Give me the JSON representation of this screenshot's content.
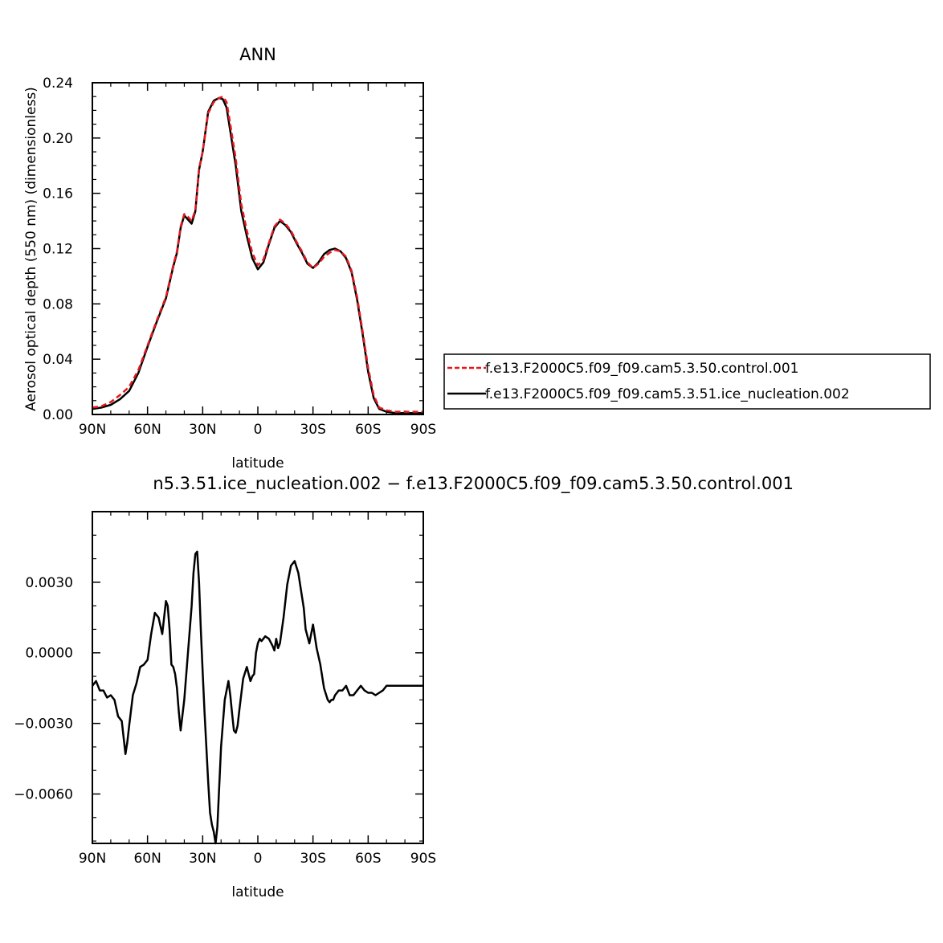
{
  "chart_data": [
    {
      "type": "line",
      "title": "ANN",
      "xlabel": "latitude",
      "ylabel": "Aerosol optical depth (550 nm) (dimensionless)",
      "xlim": [
        90,
        -90
      ],
      "ylim": [
        0,
        0.24
      ],
      "x_ticks": [
        90,
        60,
        30,
        0,
        -30,
        -60,
        -90
      ],
      "x_tick_labels": [
        "90N",
        "60N",
        "30N",
        "0",
        "30S",
        "60S",
        "90S"
      ],
      "y_ticks": [
        0,
        0.04,
        0.08,
        0.12,
        0.16,
        0.2,
        0.24
      ],
      "y_tick_labels": [
        "0.00",
        "0.04",
        "0.08",
        "0.12",
        "0.16",
        "0.20",
        "0.24"
      ],
      "legend": "right",
      "grid": false,
      "series": [
        {
          "name": "f.e13.F2000C5.f09_f09.cam5.3.50.control.001",
          "color": "#e8171d",
          "dash": "dashed",
          "x": [
            90,
            85,
            80,
            75,
            70,
            65,
            60,
            55,
            50,
            46,
            44,
            42,
            40,
            38,
            36,
            34,
            32,
            30,
            27,
            24,
            21,
            19,
            17,
            15,
            12,
            9,
            6,
            3,
            0,
            -3,
            -6,
            -9,
            -12,
            -15,
            -18,
            -21,
            -24,
            -27,
            -30,
            -33,
            -36,
            -39,
            -42,
            -45,
            -48,
            -51,
            -54,
            -57,
            -60,
            -63,
            -66,
            -70,
            -75,
            -80,
            -85,
            -90
          ],
          "y": [
            0.005,
            0.006,
            0.009,
            0.014,
            0.02,
            0.032,
            0.05,
            0.068,
            0.085,
            0.108,
            0.118,
            0.136,
            0.145,
            0.143,
            0.14,
            0.148,
            0.178,
            0.19,
            0.218,
            0.226,
            0.229,
            0.23,
            0.226,
            0.21,
            0.185,
            0.152,
            0.133,
            0.117,
            0.108,
            0.112,
            0.124,
            0.136,
            0.141,
            0.138,
            0.133,
            0.125,
            0.118,
            0.11,
            0.106,
            0.109,
            0.114,
            0.117,
            0.119,
            0.118,
            0.114,
            0.104,
            0.085,
            0.06,
            0.034,
            0.014,
            0.005,
            0.003,
            0.002,
            0.002,
            0.002,
            0.002
          ]
        },
        {
          "name": "f.e13.F2000C5.f09_f09.cam5.3.51.ice_nucleation.002",
          "color": "#000000",
          "dash": "solid",
          "x": [
            90,
            85,
            80,
            75,
            70,
            65,
            60,
            55,
            50,
            46,
            44,
            42,
            40,
            38,
            36,
            34,
            32,
            30,
            27,
            24,
            21,
            19,
            17,
            15,
            12,
            9,
            6,
            3,
            0,
            -3,
            -6,
            -9,
            -12,
            -15,
            -18,
            -21,
            -24,
            -27,
            -30,
            -33,
            -36,
            -39,
            -42,
            -45,
            -48,
            -51,
            -54,
            -57,
            -60,
            -63,
            -66,
            -70,
            -75,
            -80,
            -85,
            -90
          ],
          "y": [
            0.004,
            0.005,
            0.007,
            0.011,
            0.017,
            0.03,
            0.049,
            0.067,
            0.084,
            0.107,
            0.117,
            0.135,
            0.144,
            0.141,
            0.138,
            0.147,
            0.177,
            0.19,
            0.219,
            0.227,
            0.229,
            0.228,
            0.222,
            0.205,
            0.18,
            0.147,
            0.129,
            0.113,
            0.105,
            0.11,
            0.123,
            0.135,
            0.14,
            0.137,
            0.132,
            0.124,
            0.117,
            0.109,
            0.106,
            0.11,
            0.116,
            0.119,
            0.12,
            0.118,
            0.113,
            0.103,
            0.083,
            0.058,
            0.031,
            0.012,
            0.004,
            0.002,
            0.001,
            0.001,
            0.001,
            0.001
          ]
        }
      ]
    },
    {
      "type": "line",
      "title": "n5.3.51.ice_nucleation.002  −  f.e13.F2000C5.f09_f09.cam5.3.50.control.001",
      "xlabel": "latitude",
      "ylabel": "",
      "xlim": [
        90,
        -90
      ],
      "ylim": [
        -0.0081,
        0.006
      ],
      "x_ticks": [
        90,
        60,
        30,
        0,
        -30,
        -60,
        -90
      ],
      "x_tick_labels": [
        "90N",
        "60N",
        "30N",
        "0",
        "30S",
        "60S",
        "90S"
      ],
      "y_ticks": [
        -0.006,
        -0.003,
        0.0,
        0.003
      ],
      "y_tick_labels": [
        "−0.0060",
        "−0.0030",
        "0.0000",
        "0.0030"
      ],
      "grid": false,
      "series": [
        {
          "color": "#000000",
          "x": [
            90,
            88,
            86,
            84,
            82,
            80,
            78,
            76,
            74,
            72,
            71,
            70,
            68,
            66,
            64,
            62,
            60,
            58,
            56,
            54,
            52,
            50,
            49,
            48,
            47,
            46,
            45,
            44,
            43,
            42,
            40,
            38,
            36,
            35,
            34,
            33,
            32,
            31,
            30,
            29,
            28,
            27,
            26,
            25,
            24,
            23,
            22,
            20,
            18,
            16,
            15,
            14,
            13,
            12,
            11,
            10,
            8,
            6,
            4,
            3,
            2,
            1,
            0,
            -1,
            -2,
            -4,
            -6,
            -8,
            -9,
            -10,
            -11,
            -12,
            -14,
            -16,
            -18,
            -20,
            -22,
            -24,
            -25,
            -26,
            -28,
            -30,
            -32,
            -34,
            -36,
            -38,
            -39,
            -40,
            -41,
            -42,
            -44,
            -46,
            -48,
            -50,
            -52,
            -54,
            -56,
            -58,
            -60,
            -62,
            -64,
            -66,
            -68,
            -70,
            -72,
            -74,
            -76,
            -78,
            -80,
            -82,
            -84,
            -86,
            -88,
            -90
          ],
          "y": [
            -0.0014,
            -0.0012,
            -0.0016,
            -0.0016,
            -0.0019,
            -0.0018,
            -0.002,
            -0.0027,
            -0.0029,
            -0.0043,
            -0.0038,
            -0.0031,
            -0.0018,
            -0.0013,
            -0.0006,
            -0.0005,
            -0.0003,
            0.0008,
            0.0017,
            0.0015,
            0.0008,
            0.0022,
            0.002,
            0.001,
            -0.0005,
            -0.0006,
            -0.0009,
            -0.0015,
            -0.0025,
            -0.0033,
            -0.002,
            0.0,
            0.002,
            0.0034,
            0.0042,
            0.0043,
            0.003,
            0.001,
            -0.0008,
            -0.0025,
            -0.004,
            -0.0055,
            -0.0068,
            -0.0073,
            -0.0076,
            -0.0081,
            -0.0074,
            -0.004,
            -0.002,
            -0.0012,
            -0.0018,
            -0.0026,
            -0.0033,
            -0.0034,
            -0.0031,
            -0.0024,
            -0.0011,
            -0.0006,
            -0.0012,
            -0.001,
            -0.0009,
            0.0,
            0.0004,
            0.0006,
            0.0005,
            0.0007,
            0.0006,
            0.0003,
            0.0001,
            0.0006,
            0.0002,
            0.0004,
            0.0015,
            0.0029,
            0.0037,
            0.0039,
            0.0034,
            0.0024,
            0.0019,
            0.001,
            0.0004,
            0.0012,
            0.0002,
            -0.0005,
            -0.0015,
            -0.002,
            -0.0021,
            -0.002,
            -0.002,
            -0.0018,
            -0.0016,
            -0.0016,
            -0.0014,
            -0.0018,
            -0.0018,
            -0.0016,
            -0.0014,
            -0.0016,
            -0.0017,
            -0.0017,
            -0.0018,
            -0.0017,
            -0.0016,
            -0.0014,
            -0.0014,
            -0.0014,
            -0.0014,
            -0.0014,
            -0.0014,
            -0.0014,
            -0.0014,
            -0.0014,
            -0.0014,
            -0.0014
          ]
        }
      ]
    }
  ]
}
